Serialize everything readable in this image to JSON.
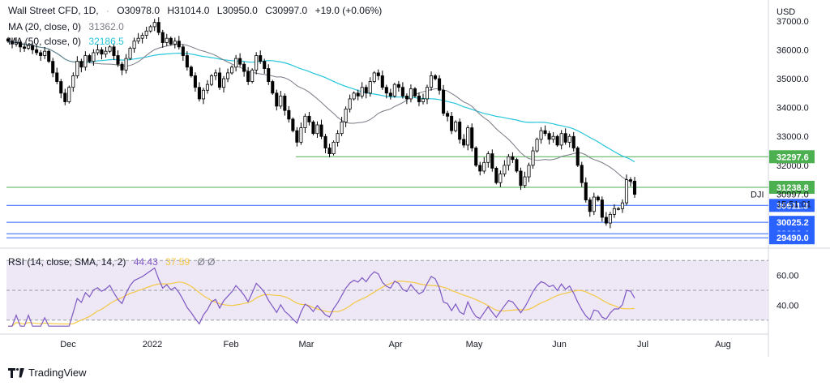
{
  "app": {
    "brand": "TradingView"
  },
  "header": {
    "symbol_label": "Wall Street CFD, 1D,",
    "open_label": "O",
    "open": "30978.0",
    "high_label": "H",
    "high": "31014.0",
    "low_label": "L",
    "low": "30950.0",
    "close_label": "C",
    "close": "30997.0",
    "change": "+19.0 (+0.06%)",
    "ma20_label": "MA (20, close, 0)",
    "ma20_value": "31362.0",
    "ma50_label": "MA (50, close, 0)",
    "ma50_value": "32186.5",
    "rsi_label": "RSI (14, close, SMA, 14, 2)",
    "rsi_value": "44.43",
    "rsi_sma_value": "37.59",
    "rsi_extra": "Ø Ø"
  },
  "colors": {
    "up": "#ffffff",
    "down": "#000000",
    "ma20": "#787b86",
    "ma50": "#26c6da",
    "green_line": "#4caf50",
    "blue_line": "#2962ff",
    "rsi": "#7e57c2",
    "rsi_sma": "#f5c842",
    "rsi_band": "#ede7f6"
  },
  "chart_data": [
    {
      "type": "candlestick",
      "title": "Wall Street CFD, 1D",
      "currency": "USD",
      "ylim": [
        29300,
        37500
      ],
      "y_ticks": [
        "37000.0",
        "36000.0",
        "35000.0",
        "34000.0",
        "33000.0",
        "32000.0"
      ],
      "x_ticks": [
        "Dec",
        "2022",
        "Feb",
        "Mar",
        "Apr",
        "May",
        "Jun",
        "Jul",
        "Aug"
      ],
      "last_price": "30997.0",
      "symbol_tag": "DJI",
      "countdown": "15:51:01",
      "horizontal_levels": [
        {
          "value": 32297.6,
          "label": "32297.6",
          "color": "green"
        },
        {
          "value": 31238.8,
          "label": "31238.8",
          "color": "green"
        },
        {
          "value": 30611.3,
          "label": "30611.3",
          "color": "blue"
        },
        {
          "value": 30025.2,
          "label": "30025.2",
          "color": "blue"
        },
        {
          "value": 29630.4,
          "label": "29630.4",
          "color": "blue"
        },
        {
          "value": 29490.0,
          "label": "29490.0",
          "color": "blue"
        }
      ],
      "close_series": [
        36300,
        36200,
        36250,
        36100,
        36050,
        36150,
        36000,
        35900,
        35800,
        35950,
        35600,
        35200,
        34900,
        34500,
        34200,
        34700,
        35100,
        35600,
        35400,
        35800,
        35600,
        35900,
        36000,
        35850,
        35950,
        36100,
        35800,
        35500,
        35300,
        35700,
        36050,
        36300,
        36400,
        36500,
        36650,
        36800,
        36950,
        36600,
        36250,
        36400,
        36200,
        36300,
        36100,
        35800,
        35400,
        35100,
        34700,
        34300,
        34600,
        34800,
        35100,
        35200,
        34700,
        35000,
        35200,
        35400,
        35700,
        35500,
        35250,
        34900,
        35300,
        35800,
        35600,
        35350,
        34900,
        34500,
        34050,
        34400,
        33900,
        33600,
        33200,
        32800,
        33300,
        33700,
        33500,
        33100,
        33400,
        33000,
        32600,
        32400,
        32800,
        33100,
        33500,
        33950,
        34300,
        34500,
        34400,
        34700,
        34500,
        34900,
        35200,
        35100,
        34700,
        34500,
        34400,
        34800,
        34700,
        34400,
        34300,
        34650,
        34400,
        34200,
        34300,
        34700,
        35100,
        35000,
        34600,
        33800,
        33700,
        33200,
        33500,
        32900,
        32700,
        33300,
        32600,
        32000,
        31800,
        32100,
        32400,
        31900,
        31400,
        31700,
        32000,
        32300,
        32200,
        31800,
        31300,
        31600,
        32000,
        32500,
        32900,
        33200,
        33100,
        32900,
        33000,
        32700,
        33100,
        32800,
        33000,
        32600,
        32000,
        31400,
        30800,
        30400,
        30900,
        30800,
        30200,
        30000,
        30300,
        30500,
        30500,
        30700,
        31500,
        31450,
        30997
      ],
      "rsi": {
        "label": "RSI (14, close, SMA, 14, 2)",
        "ylim": [
          25,
          75
        ],
        "y_ticks": [
          "60.00",
          "40.00"
        ],
        "upper_band": 70,
        "lower_band": 30,
        "mid": 50,
        "value": 44.43,
        "sma_value": 37.59
      }
    }
  ]
}
